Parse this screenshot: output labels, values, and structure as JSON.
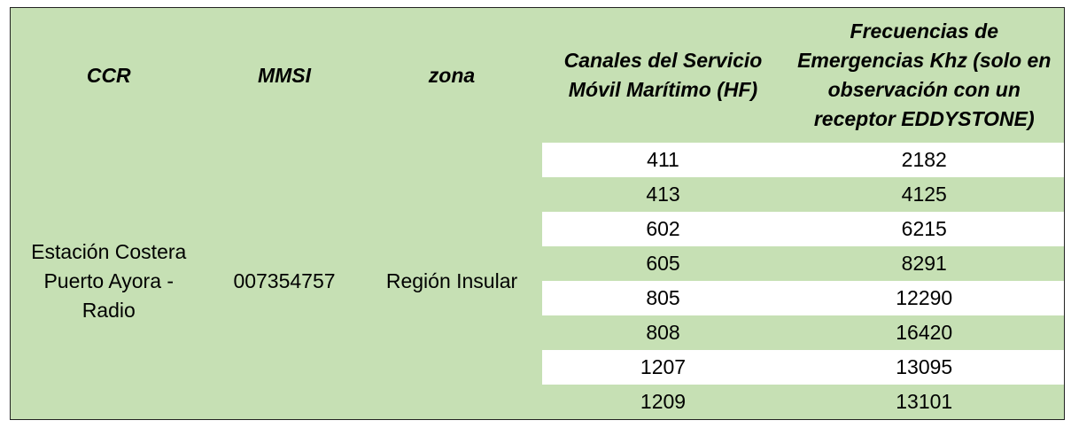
{
  "table": {
    "header": [
      "CCR",
      "MMSI",
      "zona",
      "Canales del Servicio Móvil Marítimo (HF)",
      "Frecuencias de Emergencias Khz (solo en observación con un receptor EDDYSTONE)"
    ],
    "station": [
      "Estación Costera Puerto Ayora - Radio",
      "007354757",
      "Región Insular"
    ],
    "rows": [
      [
        "411",
        "2182"
      ],
      [
        "413",
        "4125"
      ],
      [
        "602",
        "6215"
      ],
      [
        "605",
        "8291"
      ],
      [
        "805",
        "12290"
      ],
      [
        "808",
        "16420"
      ],
      [
        "1207",
        "13095"
      ],
      [
        "1209",
        "13101"
      ]
    ]
  }
}
